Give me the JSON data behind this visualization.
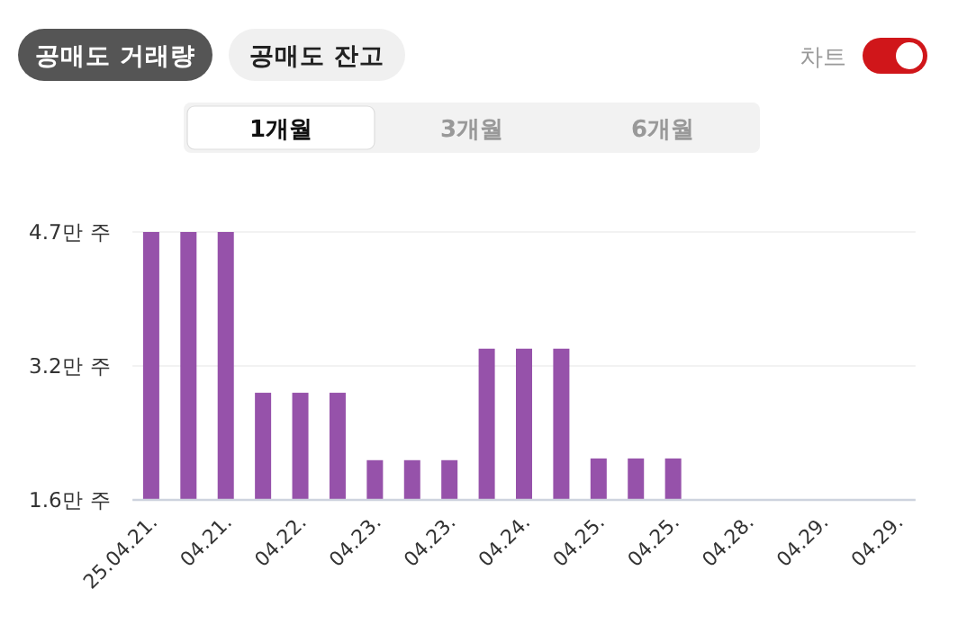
{
  "chart_data": {
    "type": "bar",
    "categories": [
      "25.04.21.",
      null,
      "04.21.",
      null,
      "04.22.",
      null,
      "04.23.",
      null,
      "04.23.",
      null,
      "04.24.",
      null,
      "04.25.",
      null,
      "04.25.",
      null,
      "04.28.",
      null,
      "04.29.",
      null,
      "04.29."
    ],
    "values": [
      4.7,
      4.7,
      4.7,
      2.84,
      2.84,
      2.84,
      2.06,
      2.06,
      2.06,
      3.35,
      3.35,
      3.35,
      2.08,
      2.08,
      2.08,
      null,
      null,
      null,
      null,
      null,
      null
    ],
    "color": "#9652aa",
    "ylim": [
      1.6,
      4.7
    ],
    "yticks": [
      {
        "value": 1.6,
        "label": "1.6만 주"
      },
      {
        "value": 3.15,
        "label": "3.2만 주"
      },
      {
        "value": 4.7,
        "label": "4.7만 주"
      }
    ],
    "grid": "y",
    "annotations": [
      "공매도 거래량",
      "공매도 잔고",
      "차트",
      "1개월",
      "3개월",
      "6개월"
    ]
  }
}
